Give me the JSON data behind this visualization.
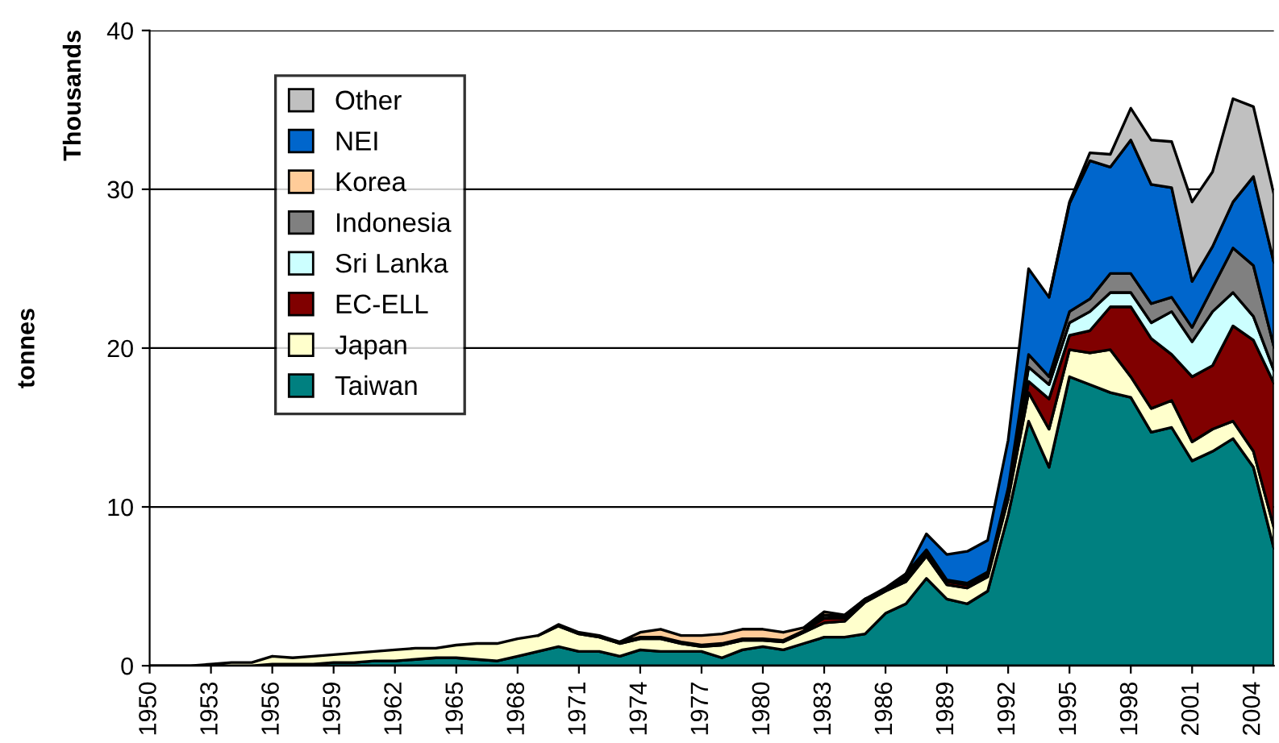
{
  "chart_data": {
    "type": "area",
    "stacked": true,
    "ylabel": "tonnes",
    "annotations": [
      "Thousands"
    ],
    "x": [
      1950,
      1951,
      1952,
      1953,
      1954,
      1955,
      1956,
      1957,
      1958,
      1959,
      1960,
      1961,
      1962,
      1963,
      1964,
      1965,
      1966,
      1967,
      1968,
      1969,
      1970,
      1971,
      1972,
      1973,
      1974,
      1975,
      1976,
      1977,
      1978,
      1979,
      1980,
      1981,
      1982,
      1983,
      1984,
      1985,
      1986,
      1987,
      1988,
      1989,
      1990,
      1991,
      1992,
      1993,
      1994,
      1995,
      1996,
      1997,
      1998,
      1999,
      2000,
      2001,
      2002,
      2003,
      2004,
      2005
    ],
    "xlim": [
      1950,
      2005
    ],
    "xticks": [
      1950,
      1953,
      1956,
      1959,
      1962,
      1965,
      1968,
      1971,
      1974,
      1977,
      1980,
      1983,
      1986,
      1989,
      1992,
      1995,
      1998,
      2001,
      2004
    ],
    "ylim": [
      0,
      40
    ],
    "yticks": [
      0,
      10,
      20,
      30,
      40
    ],
    "grid": "y",
    "legend": "top left",
    "series": [
      {
        "name": "Taiwan",
        "color": "#008080",
        "values": [
          0,
          0,
          0,
          0,
          0,
          0,
          0.1,
          0.1,
          0.1,
          0.2,
          0.2,
          0.3,
          0.3,
          0.4,
          0.5,
          0.5,
          0.4,
          0.3,
          0.6,
          0.9,
          1.2,
          0.9,
          0.9,
          0.6,
          1.0,
          0.9,
          0.9,
          0.9,
          0.5,
          1.0,
          1.2,
          1.0,
          1.4,
          1.8,
          1.8,
          2.0,
          3.3,
          3.9,
          5.5,
          4.2,
          3.9,
          4.7,
          9.5,
          15.4,
          12.5,
          18.2,
          17.7,
          17.2,
          16.9,
          14.7,
          15.0,
          12.9,
          13.5,
          14.3,
          12.5,
          7.4
        ]
      },
      {
        "name": "Japan",
        "color": "#ffffcc",
        "values": [
          0,
          0,
          0,
          0.1,
          0.2,
          0.2,
          0.5,
          0.4,
          0.5,
          0.5,
          0.6,
          0.6,
          0.7,
          0.7,
          0.6,
          0.8,
          1.0,
          1.1,
          1.1,
          1.0,
          1.3,
          1.1,
          0.9,
          0.8,
          0.7,
          0.8,
          0.5,
          0.3,
          0.8,
          0.6,
          0.4,
          0.5,
          0.7,
          0.9,
          1.0,
          2.0,
          1.4,
          1.4,
          1.4,
          0.9,
          1.0,
          0.9,
          1.0,
          1.8,
          2.4,
          1.7,
          2.0,
          2.7,
          1.3,
          1.5,
          1.7,
          1.2,
          1.4,
          1.1,
          1.0,
          1.3
        ]
      },
      {
        "name": "EC-ELL",
        "color": "#800000",
        "values": [
          null,
          null,
          null,
          null,
          null,
          null,
          null,
          null,
          null,
          null,
          null,
          null,
          null,
          null,
          null,
          null,
          null,
          null,
          null,
          0,
          0.1,
          0.1,
          0.1,
          0.1,
          0.1,
          0.1,
          0.1,
          0.1,
          0.1,
          0.1,
          0.1,
          0.1,
          0.1,
          0.3,
          0.2,
          0.2,
          0.1,
          0.2,
          0.2,
          0.2,
          0.2,
          0.2,
          0.3,
          0.7,
          1.9,
          0.9,
          1.4,
          2.7,
          4.4,
          4.4,
          2.9,
          4.1,
          4.0,
          6.0,
          7.0,
          9.1
        ]
      },
      {
        "name": "Sri Lanka",
        "color": "#ccffff",
        "values": [
          null,
          null,
          null,
          null,
          null,
          null,
          null,
          null,
          null,
          null,
          null,
          null,
          null,
          null,
          null,
          null,
          null,
          null,
          null,
          null,
          null,
          null,
          null,
          null,
          null,
          null,
          null,
          null,
          null,
          null,
          null,
          null,
          null,
          null,
          null,
          null,
          0,
          0.1,
          0,
          0,
          0,
          0,
          0.2,
          0.9,
          0.9,
          0.8,
          1.2,
          0.9,
          0.9,
          1.0,
          2.7,
          2.2,
          3.4,
          2.1,
          1.5,
          0.8
        ]
      },
      {
        "name": "Indonesia",
        "color": "#808080",
        "values": [
          null,
          null,
          null,
          null,
          null,
          null,
          null,
          null,
          null,
          null,
          null,
          null,
          null,
          null,
          null,
          null,
          null,
          null,
          null,
          null,
          null,
          null,
          null,
          null,
          null,
          null,
          null,
          null,
          null,
          null,
          null,
          null,
          0,
          0.2,
          0.1,
          0,
          0.1,
          0.2,
          0.2,
          0.1,
          0.1,
          0.1,
          0.2,
          0.8,
          0.5,
          0.7,
          0.8,
          1.2,
          1.2,
          1.2,
          0.9,
          0.9,
          1.5,
          2.8,
          3.2,
          1.5
        ]
      },
      {
        "name": "Korea",
        "color": "#ffcc99",
        "values": [
          null,
          null,
          null,
          null,
          null,
          null,
          null,
          null,
          null,
          null,
          null,
          null,
          null,
          null,
          null,
          null,
          null,
          null,
          null,
          null,
          null,
          null,
          null,
          0,
          0.3,
          0.5,
          0.4,
          0.6,
          0.6,
          0.6,
          0.6,
          0.5,
          0.2,
          0.2,
          0.1,
          0,
          null,
          null,
          null,
          null,
          null,
          null,
          null,
          null,
          null,
          null,
          null,
          null,
          null,
          null,
          null,
          null,
          null,
          null,
          null,
          null
        ]
      },
      {
        "name": "NEI",
        "color": "#0066cc",
        "values": [
          null,
          null,
          null,
          null,
          null,
          null,
          null,
          null,
          null,
          null,
          null,
          null,
          null,
          null,
          null,
          null,
          null,
          null,
          null,
          null,
          null,
          null,
          null,
          null,
          null,
          null,
          null,
          null,
          null,
          null,
          null,
          null,
          null,
          null,
          null,
          null,
          null,
          0,
          1.0,
          1.6,
          2.0,
          2.0,
          3.0,
          5.4,
          5.0,
          6.8,
          8.7,
          6.7,
          8.4,
          7.5,
          6.9,
          2.9,
          2.6,
          2.9,
          5.6,
          5.3
        ]
      },
      {
        "name": "Other",
        "color": "#c0c0c0",
        "values": [
          null,
          null,
          null,
          null,
          null,
          null,
          null,
          null,
          null,
          null,
          null,
          null,
          null,
          null,
          null,
          null,
          null,
          null,
          null,
          null,
          null,
          null,
          null,
          null,
          null,
          null,
          null,
          null,
          null,
          null,
          null,
          null,
          null,
          null,
          null,
          null,
          null,
          null,
          null,
          null,
          null,
          null,
          null,
          null,
          0,
          0.1,
          0.5,
          0.8,
          2.0,
          2.8,
          2.9,
          5.0,
          4.7,
          6.5,
          4.4,
          4.3
        ]
      }
    ]
  }
}
